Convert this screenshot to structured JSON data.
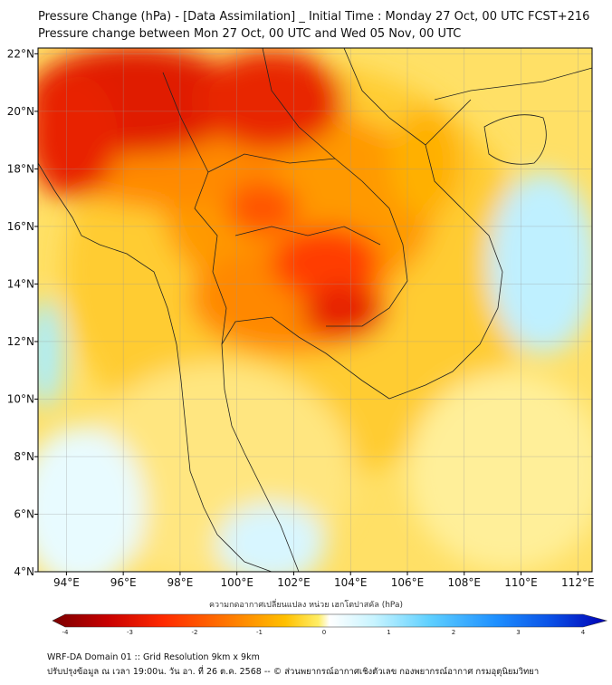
{
  "title_line1": "Pressure Change (hPa) - [Data Assimilation] _ Initial Time : Monday 27 Oct, 00 UTC FCST+216",
  "title_line2": "Pressure change between Mon 27 Oct, 00 UTC and Wed 05 Nov, 00 UTC",
  "map": {
    "lon_range": [
      93,
      112.5
    ],
    "lat_range": [
      4,
      22.2
    ],
    "lon_ticks": [
      "94°E",
      "96°E",
      "98°E",
      "100°E",
      "102°E",
      "104°E",
      "106°E",
      "108°E",
      "110°E",
      "112°E"
    ],
    "lat_ticks": [
      "22°N",
      "20°N",
      "18°N",
      "16°N",
      "14°N",
      "12°N",
      "10°N",
      "8°N",
      "6°N",
      "4°N"
    ]
  },
  "colorbar": {
    "title": "ความกดอากาศเปลี่ยนแปลง หน่วย เฮกโตปาสคัล (hPa)",
    "range": [
      -4,
      4
    ],
    "tick_labels": [
      "-4",
      "-3",
      "-2",
      "-1",
      "0",
      "1",
      "2",
      "3",
      "4"
    ],
    "colors": [
      "#7a0000",
      "#c80000",
      "#ff2a00",
      "#ff7a00",
      "#ffb300",
      "#ffe84d",
      "#ffffff",
      "#aef0ff",
      "#3fc0ff",
      "#0a64ff",
      "#0000b4"
    ]
  },
  "footer_line1": "WRF-DA Domain 01 :: Grid Resolution 9km x 9km",
  "footer_line2": "ปรับปรุงข้อมูล ณ เวลา 19:00น. วัน อา. ที่ 26 ต.ค. 2568 -- © ส่วนพยากรณ์อากาศเชิงตัวเลข กองพยากรณ์อากาศ กรมอุตุนิยมวิทยา"
}
